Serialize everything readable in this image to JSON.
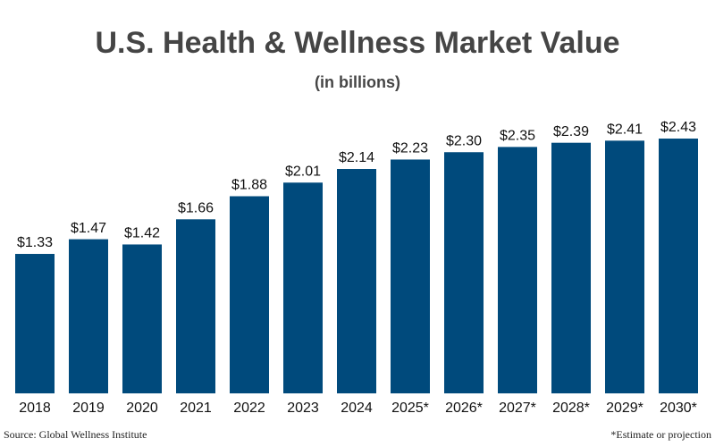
{
  "chart_data": {
    "type": "bar",
    "title": "U.S. Health & Wellness Market Value",
    "subtitle": "(in billions)",
    "categories": [
      "2018",
      "2019",
      "2020",
      "2021",
      "2022",
      "2023",
      "2024",
      "2025*",
      "2026*",
      "2027*",
      "2028*",
      "2029*",
      "2030*"
    ],
    "values": [
      1.33,
      1.47,
      1.42,
      1.66,
      1.88,
      2.01,
      2.14,
      2.23,
      2.3,
      2.35,
      2.39,
      2.41,
      2.43
    ],
    "value_labels": [
      "$1.33",
      "$1.47",
      "$1.42",
      "$1.66",
      "$1.88",
      "$2.01",
      "$2.14",
      "$2.23",
      "$2.30",
      "$2.35",
      "$2.39",
      "$2.41",
      "$2.43"
    ],
    "color": "#004a7c",
    "source": "Source: Global Wellness Institute",
    "footnote": "*Estimate or projection"
  }
}
